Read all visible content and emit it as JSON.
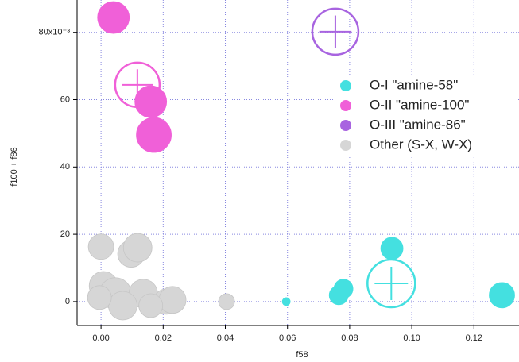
{
  "chart_data": {
    "type": "bubble",
    "x_label": "f58",
    "y_label": "f100 + f86",
    "xlim": [
      -0.0077,
      0.1345
    ],
    "ylim": [
      -7.1,
      89.6
    ],
    "xticks": [
      {
        "value": 0,
        "label": "0.00"
      },
      {
        "value": 0.02,
        "label": "0.02"
      },
      {
        "value": 0.04,
        "label": "0.04"
      },
      {
        "value": 0.06,
        "label": "0.06"
      },
      {
        "value": 0.08,
        "label": "0.08"
      },
      {
        "value": 0.1,
        "label": "0.10"
      },
      {
        "value": 0.12,
        "label": "0.12"
      }
    ],
    "yticks": [
      0,
      20,
      40,
      60,
      {
        "value": 80,
        "label": "80x10⁻³"
      }
    ],
    "grid": true,
    "series": [
      {
        "name": "Other (S-X, W-X)",
        "color": "#d6d6d6",
        "x": [
          0,
          0.0097,
          0.0118,
          0.0008,
          0.0046,
          0.0136,
          0.021,
          0.023,
          0.0404,
          0.007,
          -0.0005,
          0.016
        ],
        "values": [
          16.3,
          14.2,
          16,
          4.7,
          2.4,
          2.4,
          0,
          0.5,
          0,
          -1.2,
          1.2,
          -1.2
        ],
        "sizes": [
          16,
          17,
          18,
          18,
          20,
          18,
          16,
          17,
          10,
          18,
          15,
          15
        ]
      },
      {
        "name": "O-I \"amine-58\"",
        "color": "#44e0e0",
        "x": [
          0.0936,
          0.0765,
          0.078,
          0.0596,
          0.129
        ],
        "values": [
          15.8,
          1.9,
          3.8,
          0,
          1.9
        ],
        "sizes": [
          14,
          12,
          12,
          5,
          16
        ],
        "centroid": {
          "x": 0.0934,
          "y": 5.4,
          "size": 30
        }
      },
      {
        "name": "O-II \"amine-100\"",
        "color": "#f060d8",
        "x": [
          0.004,
          0.016,
          0.017
        ],
        "values": [
          84.4,
          59.4,
          49.5
        ],
        "sizes": [
          20,
          20,
          22
        ],
        "centroid": {
          "x": 0.0117,
          "y": 64.4,
          "size": 28
        }
      },
      {
        "name": "O-III \"amine-86\"",
        "color": "#a864e0",
        "x": [],
        "values": [],
        "sizes": [],
        "centroid": {
          "x": 0.0754,
          "y": 80.2,
          "size": 29
        }
      }
    ],
    "legend_order": [
      1,
      2,
      3,
      0
    ]
  }
}
